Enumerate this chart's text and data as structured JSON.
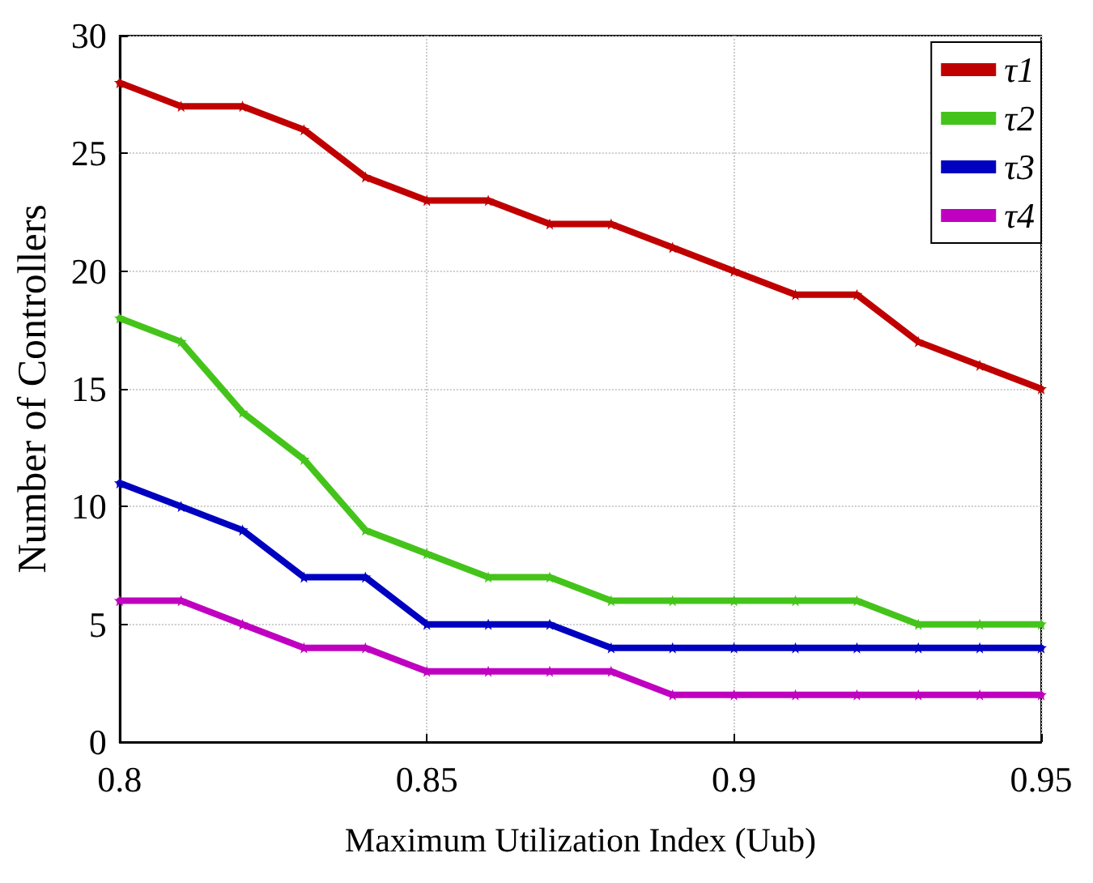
{
  "chart_data": {
    "type": "line",
    "xlabel": "Maximum Utilization Index (Uub)",
    "ylabel": "Number of Controllers",
    "x": [
      0.8,
      0.81,
      0.82,
      0.83,
      0.84,
      0.85,
      0.86,
      0.87,
      0.88,
      0.89,
      0.9,
      0.91,
      0.92,
      0.93,
      0.94,
      0.95
    ],
    "series": [
      {
        "name": "τ1",
        "color": "#c00000",
        "values": [
          28,
          27,
          27,
          26,
          24,
          23,
          23,
          22,
          22,
          21,
          20,
          19,
          19,
          17,
          16,
          15
        ]
      },
      {
        "name": "τ2",
        "color": "#44c41a",
        "values": [
          18,
          17,
          14,
          12,
          9,
          8,
          7,
          7,
          6,
          6,
          6,
          6,
          6,
          5,
          5,
          5
        ]
      },
      {
        "name": "τ3",
        "color": "#0000c0",
        "values": [
          11,
          10,
          9,
          7,
          7,
          5,
          5,
          5,
          4,
          4,
          4,
          4,
          4,
          4,
          4,
          4
        ]
      },
      {
        "name": "τ4",
        "color": "#c000c0",
        "values": [
          6,
          6,
          5,
          4,
          4,
          3,
          3,
          3,
          3,
          2,
          2,
          2,
          2,
          2,
          2,
          2
        ]
      }
    ],
    "xlim": [
      0.8,
      0.95
    ],
    "xticks": [
      0.8,
      0.85,
      0.9,
      0.95
    ],
    "ylim": [
      0,
      30
    ],
    "yticks": [
      0,
      5,
      10,
      15,
      20,
      25,
      30
    ],
    "grid": true,
    "legend": "top right",
    "marker": "star",
    "line_style": "solid"
  }
}
